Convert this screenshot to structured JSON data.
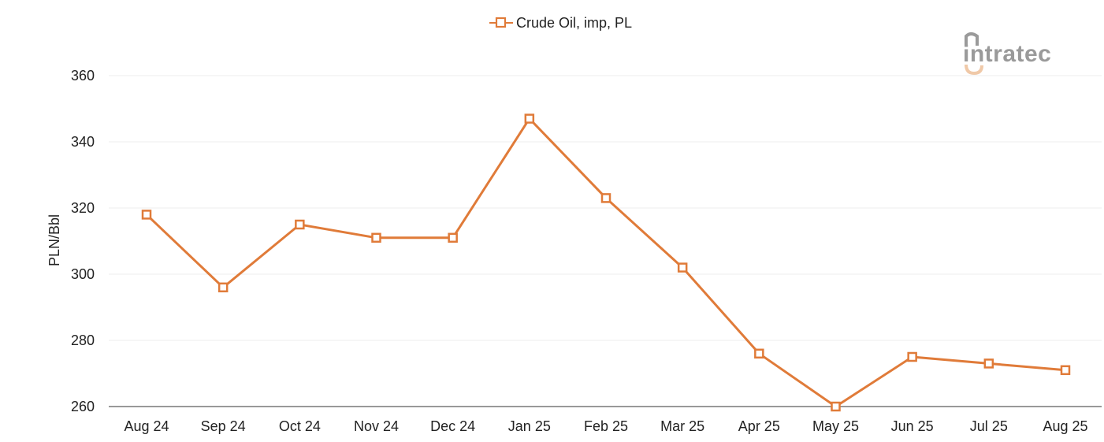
{
  "logo": {
    "text": "intratec"
  },
  "colors": {
    "series": "#E07B39",
    "grid": "#ececec",
    "axis": "#333333",
    "logo_gray": "#9a9a9a",
    "logo_accent": "#f0c9a8"
  },
  "chart_data": {
    "type": "line",
    "title": "",
    "xlabel": "",
    "ylabel": "PLN/Bbl",
    "ylim": [
      260,
      360
    ],
    "yticks": [
      "260",
      "280",
      "300",
      "320",
      "340",
      "360"
    ],
    "grid": true,
    "legend_position": "top-center",
    "categories": [
      "Aug 24",
      "Sep 24",
      "Oct 24",
      "Nov 24",
      "Dec 24",
      "Jan 25",
      "Feb 25",
      "Mar 25",
      "Apr 25",
      "May 25",
      "Jun 25",
      "Jul 25",
      "Aug 25"
    ],
    "series": [
      {
        "name": "Crude Oil, imp, PL",
        "marker": "square-open",
        "values": [
          318,
          296,
          315,
          311,
          311,
          347,
          323,
          302,
          276,
          260,
          275,
          273,
          271
        ]
      }
    ]
  }
}
